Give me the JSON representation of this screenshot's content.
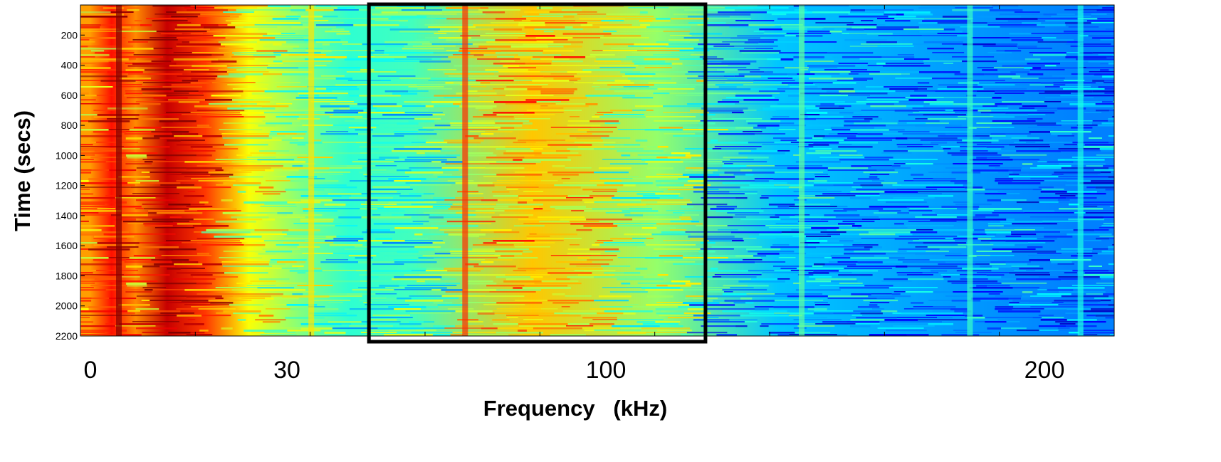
{
  "chart_data": {
    "type": "heatmap",
    "title": "",
    "xlabel": "Frequency   (kHz)",
    "ylabel": "Time (secs)",
    "x_ticks": [
      "0",
      "30",
      "100",
      "200"
    ],
    "y_ticks": [
      "200",
      "400",
      "600",
      "800",
      "1000",
      "1200",
      "1400",
      "1600",
      "1800",
      "2000",
      "2200"
    ],
    "ylim": [
      0,
      2200
    ],
    "y_reversed": true,
    "colormap": "jet",
    "highlight_box": {
      "description_freq_start": 60,
      "description_freq_end": 130,
      "color": "#000000"
    },
    "bands": [
      {
        "freq_start": 0,
        "freq_end": 4,
        "level": 0.72
      },
      {
        "freq_start": 4,
        "freq_end": 9,
        "level": 0.86
      },
      {
        "freq_start": 9,
        "freq_end": 14,
        "level": 0.74
      },
      {
        "freq_start": 14,
        "freq_end": 22,
        "level": 0.93
      },
      {
        "freq_start": 22,
        "freq_end": 30,
        "level": 0.82
      },
      {
        "freq_start": 30,
        "freq_end": 40,
        "level": 0.62
      },
      {
        "freq_start": 40,
        "freq_end": 52,
        "level": 0.5
      },
      {
        "freq_start": 52,
        "freq_end": 60,
        "level": 0.42
      },
      {
        "freq_start": 60,
        "freq_end": 78,
        "level": 0.44
      },
      {
        "freq_start": 78,
        "freq_end": 110,
        "level": 0.68
      },
      {
        "freq_start": 110,
        "freq_end": 130,
        "level": 0.52
      },
      {
        "freq_start": 130,
        "freq_end": 160,
        "level": 0.32
      },
      {
        "freq_start": 160,
        "freq_end": 200,
        "level": 0.28
      },
      {
        "freq_start": 200,
        "freq_end": 215,
        "level": 0.25
      }
    ],
    "vertical_lines_freq": [
      8,
      48,
      80,
      150,
      185,
      208
    ]
  }
}
